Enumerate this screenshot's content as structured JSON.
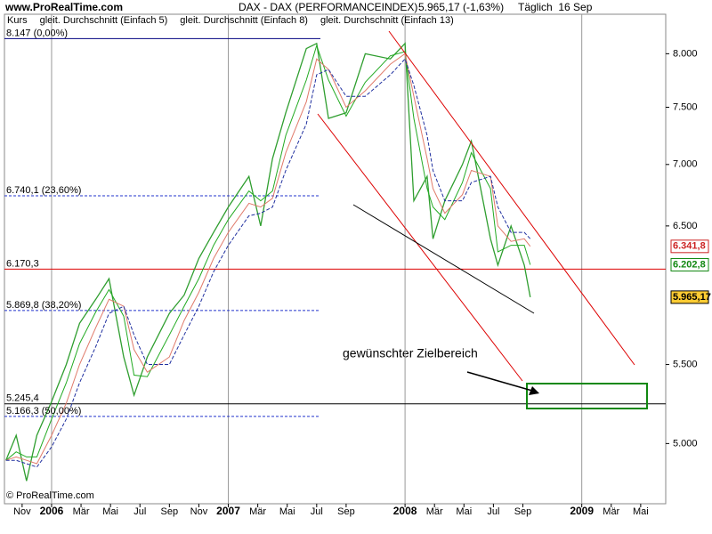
{
  "chart_data": {
    "type": "line",
    "source": "www.ProRealTime.com",
    "title": "DAX - DAX (PERFORMANCEINDEX)",
    "last_quote": "5.965,17 (-1,63%)",
    "period": "Täglich  16 Sep",
    "copyright": "© ProRealTime.com",
    "annotation": "gewünschter Zielbereich",
    "log_y": true,
    "xlim": [
      -1.2,
      43.7
    ],
    "ylim": [
      4650,
      8390
    ],
    "xticks": [
      {
        "value": 0,
        "label": "Nov"
      },
      {
        "value": 2,
        "label": "2006",
        "year": true
      },
      {
        "value": 4,
        "label": "Mär"
      },
      {
        "value": 6,
        "label": "Mai"
      },
      {
        "value": 8,
        "label": "Jul"
      },
      {
        "value": 10,
        "label": "Sep"
      },
      {
        "value": 12,
        "label": "Nov"
      },
      {
        "value": 14,
        "label": "2007",
        "year": true
      },
      {
        "value": 16,
        "label": "Mär"
      },
      {
        "value": 18,
        "label": "Mai"
      },
      {
        "value": 20,
        "label": "Jul"
      },
      {
        "value": 22,
        "label": "Sep"
      },
      {
        "value": 26,
        "label": "2008",
        "year": true
      },
      {
        "value": 28,
        "label": "Mär"
      },
      {
        "value": 30,
        "label": "Mai"
      },
      {
        "value": 32,
        "label": "Jul"
      },
      {
        "value": 34,
        "label": "Sep"
      },
      {
        "value": 38,
        "label": "2009",
        "year": true
      },
      {
        "value": 40,
        "label": "Mär"
      },
      {
        "value": 42,
        "label": "Mai"
      }
    ],
    "yticks": [
      {
        "value": 5000,
        "label": "5.000"
      },
      {
        "value": 5500,
        "label": "5.500"
      },
      {
        "value": 6500,
        "label": "6.500"
      },
      {
        "value": 7000,
        "label": "7.000"
      },
      {
        "value": 7500,
        "label": "7.500"
      },
      {
        "value": 8000,
        "label": "8.000"
      }
    ],
    "x": [
      -1.1,
      -0.4,
      0.3,
      1.0,
      2.0,
      3.0,
      3.9,
      5.0,
      5.9,
      6.9,
      7.6,
      8.5,
      10.0,
      11.0,
      12.0,
      13.0,
      14.0,
      15.4,
      16.2,
      17.0,
      17.9,
      19.3,
      20.0,
      20.8,
      22.0,
      23.3,
      25.0,
      26.0,
      26.6,
      27.5,
      27.9,
      28.7,
      29.9,
      30.5,
      31.8,
      32.3,
      33.2,
      34.1,
      34.5
    ],
    "series": [
      {
        "name": "Kurs",
        "color": "#000000",
        "line_color": "#2f9e2f",
        "width": 1.3,
        "values": [
          4900,
          5050,
          4780,
          5050,
          5260,
          5500,
          5780,
          5950,
          6100,
          5550,
          5300,
          5550,
          5850,
          5980,
          6250,
          6450,
          6650,
          6900,
          6500,
          7050,
          7450,
          8050,
          8100,
          7400,
          7450,
          8000,
          7950,
          8100,
          6700,
          6900,
          6400,
          6700,
          7000,
          7200,
          6400,
          6200,
          6500,
          6200,
          5965.17
        ]
      },
      {
        "name": "gleit. Durchschnitt (Einfach 5)",
        "color": "#22aa22",
        "width": 1,
        "values": [
          4900,
          4950,
          4920,
          4920,
          5150,
          5380,
          5640,
          5860,
          6020,
          5830,
          5430,
          5420,
          5700,
          5900,
          6100,
          6350,
          6550,
          6780,
          6700,
          6780,
          7250,
          7750,
          8080,
          7750,
          7420,
          7730,
          7980,
          8020,
          7400,
          6800,
          6650,
          6550,
          6850,
          7100,
          6800,
          6300,
          6350,
          6350,
          6202.8
        ]
      },
      {
        "name": "gleit. Durchschnitt (Einfach 8)",
        "color": "#e07a6a",
        "width": 1,
        "values": [
          4900,
          4920,
          4900,
          4880,
          5050,
          5250,
          5500,
          5750,
          5950,
          5900,
          5600,
          5450,
          5550,
          5800,
          6000,
          6250,
          6450,
          6680,
          6650,
          6720,
          7100,
          7550,
          7950,
          7850,
          7500,
          7650,
          7900,
          8000,
          7600,
          7050,
          6800,
          6600,
          6750,
          6950,
          6900,
          6500,
          6380,
          6400,
          6341.8
        ]
      },
      {
        "name": "gleit. Durchschnitt (Einfach 13)",
        "color": "#1f2f9f",
        "width": 1,
        "dashed": true,
        "values": [
          4900,
          4900,
          4880,
          4860,
          4980,
          5150,
          5380,
          5620,
          5850,
          5900,
          5700,
          5500,
          5500,
          5700,
          5900,
          6150,
          6350,
          6580,
          6600,
          6650,
          6950,
          7350,
          7800,
          7850,
          7600,
          7600,
          7800,
          7950,
          7700,
          7250,
          6950,
          6700,
          6700,
          6850,
          6900,
          6650,
          6450,
          6450,
          6400
        ]
      }
    ],
    "levels": [
      {
        "value": 8147,
        "label": "8.147 (0,00%)",
        "color": "#000080"
      },
      {
        "value": 6740.1,
        "label": "6.740,1 (23,60%)",
        "color": "#2233cc",
        "dashed": true
      },
      {
        "value": 6170.3,
        "label": "6.170,3",
        "color": "#dd0000",
        "extend": true
      },
      {
        "value": 5869.8,
        "label": "5.869,8 (38,20%)",
        "color": "#2233cc",
        "dashed": true
      },
      {
        "value": 5245.4,
        "label": "5.245,4",
        "color": "#000000",
        "extend": true
      },
      {
        "value": 5166.3,
        "label": "5.166,3 (50,00%)",
        "color": "#2233cc",
        "dashed": true
      }
    ],
    "price_labels": [
      {
        "value": 6341.8,
        "label": "6.341,8",
        "color": "#cc2222",
        "fill": "#ffffff"
      },
      {
        "value": 6202.8,
        "label": "6.202,8",
        "color": "#118811",
        "fill": "#ffffff"
      },
      {
        "value": 5965.17,
        "label": "5.965,17",
        "color": "#000000",
        "fill": "#ffcc33"
      }
    ]
  }
}
